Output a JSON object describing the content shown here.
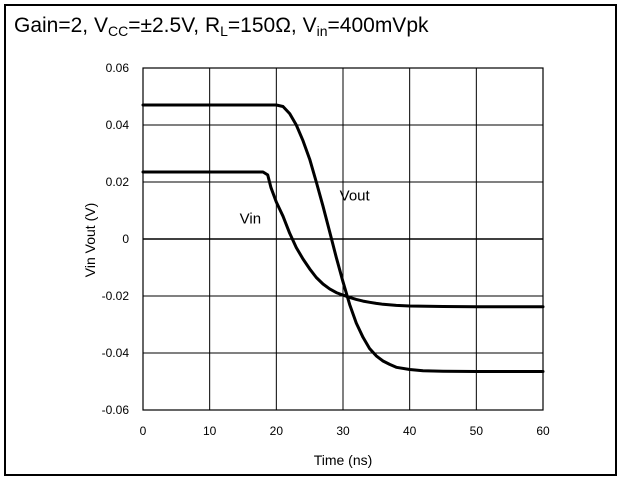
{
  "title": {
    "text1": "Gain=2, V",
    "sub1": "CC",
    "text2": "=±2.5V, R",
    "sub2": "L",
    "text3": "=150Ω, V",
    "sub3": "in",
    "text4": "=400mVpk"
  },
  "chart_data": {
    "type": "line",
    "title": "Gain=2, VCC=±2.5V, RL=150Ω, Vin=400mVpk",
    "xlabel": "Time (ns)",
    "ylabel": "Vin Vout (V)",
    "xlim": [
      0,
      60
    ],
    "ylim": [
      -0.06,
      0.06
    ],
    "xticks": [
      0,
      10,
      20,
      30,
      40,
      50,
      60
    ],
    "yticks": [
      -0.06,
      -0.04,
      -0.02,
      0,
      0.02,
      0.04,
      0.06
    ],
    "xtick_labels": [
      "0",
      "10",
      "20",
      "30",
      "40",
      "50",
      "60"
    ],
    "ytick_labels": [
      "-0.06",
      "-0.04",
      "-0.02",
      "0",
      "0.02",
      "0.04",
      "0.06"
    ],
    "grid": true,
    "series": [
      {
        "name": "Vin",
        "x": [
          0,
          5,
          10,
          15,
          18,
          18.7,
          19.2,
          20,
          21,
          22,
          23,
          24,
          25,
          26,
          27,
          28,
          29,
          30,
          31,
          32,
          33,
          34,
          35,
          36,
          38,
          40,
          45,
          50,
          55,
          60
        ],
        "y": [
          0.0235,
          0.0235,
          0.0235,
          0.0235,
          0.0235,
          0.0225,
          0.018,
          0.013,
          0.008,
          0.002,
          -0.003,
          -0.007,
          -0.0105,
          -0.0135,
          -0.0158,
          -0.0175,
          -0.0188,
          -0.0197,
          -0.0205,
          -0.0212,
          -0.0218,
          -0.0222,
          -0.0226,
          -0.0229,
          -0.0233,
          -0.0235,
          -0.0237,
          -0.0238,
          -0.0238,
          -0.0238
        ]
      },
      {
        "name": "Vout",
        "x": [
          0,
          5,
          10,
          15,
          19,
          20,
          21,
          22,
          23,
          24,
          25,
          26,
          27,
          28,
          29,
          30,
          31,
          32,
          33,
          34,
          35,
          36,
          37,
          38,
          40,
          42,
          45,
          50,
          55,
          60
        ],
        "y": [
          0.047,
          0.047,
          0.047,
          0.047,
          0.047,
          0.047,
          0.0465,
          0.044,
          0.04,
          0.0345,
          0.028,
          0.02,
          0.0115,
          0.0025,
          -0.0065,
          -0.015,
          -0.023,
          -0.0295,
          -0.0345,
          -0.0385,
          -0.041,
          -0.0428,
          -0.044,
          -0.045,
          -0.0458,
          -0.0462,
          -0.0464,
          -0.0465,
          -0.0465,
          -0.0465
        ]
      }
    ],
    "annotations": [
      {
        "text": "Vin",
        "x": 14.5,
        "y": 0.0055
      },
      {
        "text": "Vout",
        "x": 29.5,
        "y": 0.0135
      }
    ]
  }
}
